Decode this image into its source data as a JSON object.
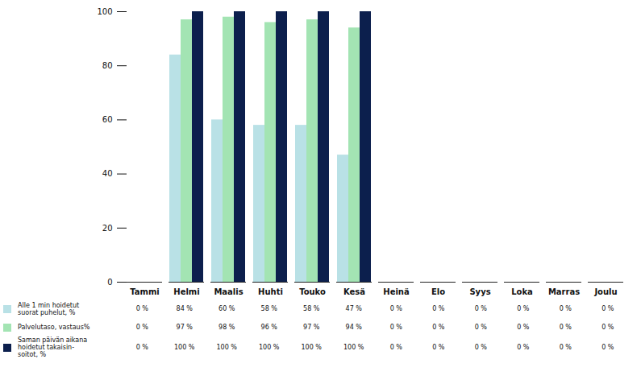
{
  "chart_data": {
    "type": "bar",
    "categories": [
      "Tammi",
      "Helmi",
      "Maalis",
      "Huhti",
      "Touko",
      "Kesä",
      "Heinä",
      "Elo",
      "Syys",
      "Loka",
      "Marras",
      "Joulu"
    ],
    "series": [
      {
        "name": "Alle 1 min hoidetut suorat puhelut, %",
        "color": "#b9e1e6",
        "values": [
          0,
          84,
          60,
          58,
          58,
          47,
          0,
          0,
          0,
          0,
          0,
          0
        ],
        "value_labels": [
          "0 %",
          "84 %",
          "60 %",
          "58 %",
          "58 %",
          "47 %",
          "0 %",
          "0 %",
          "0 %",
          "0 %",
          "0 %",
          "0 %"
        ]
      },
      {
        "name": "Palvelutaso, vastaus%",
        "color": "#a3e4b3",
        "values": [
          0,
          97,
          98,
          96,
          97,
          94,
          0,
          0,
          0,
          0,
          0,
          0
        ],
        "value_labels": [
          "0 %",
          "97 %",
          "98 %",
          "96 %",
          "97 %",
          "94 %",
          "0 %",
          "0 %",
          "0 %",
          "0 %",
          "0 %",
          "0 %"
        ]
      },
      {
        "name": "Saman päivän aikana hoidetut takaisin-soitot, %",
        "color": "#0c1f4d",
        "values": [
          0,
          100,
          100,
          100,
          100,
          100,
          0,
          0,
          0,
          0,
          0,
          0
        ],
        "value_labels": [
          "0 %",
          "100 %",
          "100 %",
          "100 %",
          "100 %",
          "100 %",
          "0 %",
          "0 %",
          "0 %",
          "0 %",
          "0 %",
          "0 %"
        ]
      }
    ],
    "ylim": [
      0,
      100
    ],
    "yticks": [
      0,
      20,
      40,
      60,
      80,
      100
    ],
    "grid": false,
    "legend": "bottom-left"
  }
}
